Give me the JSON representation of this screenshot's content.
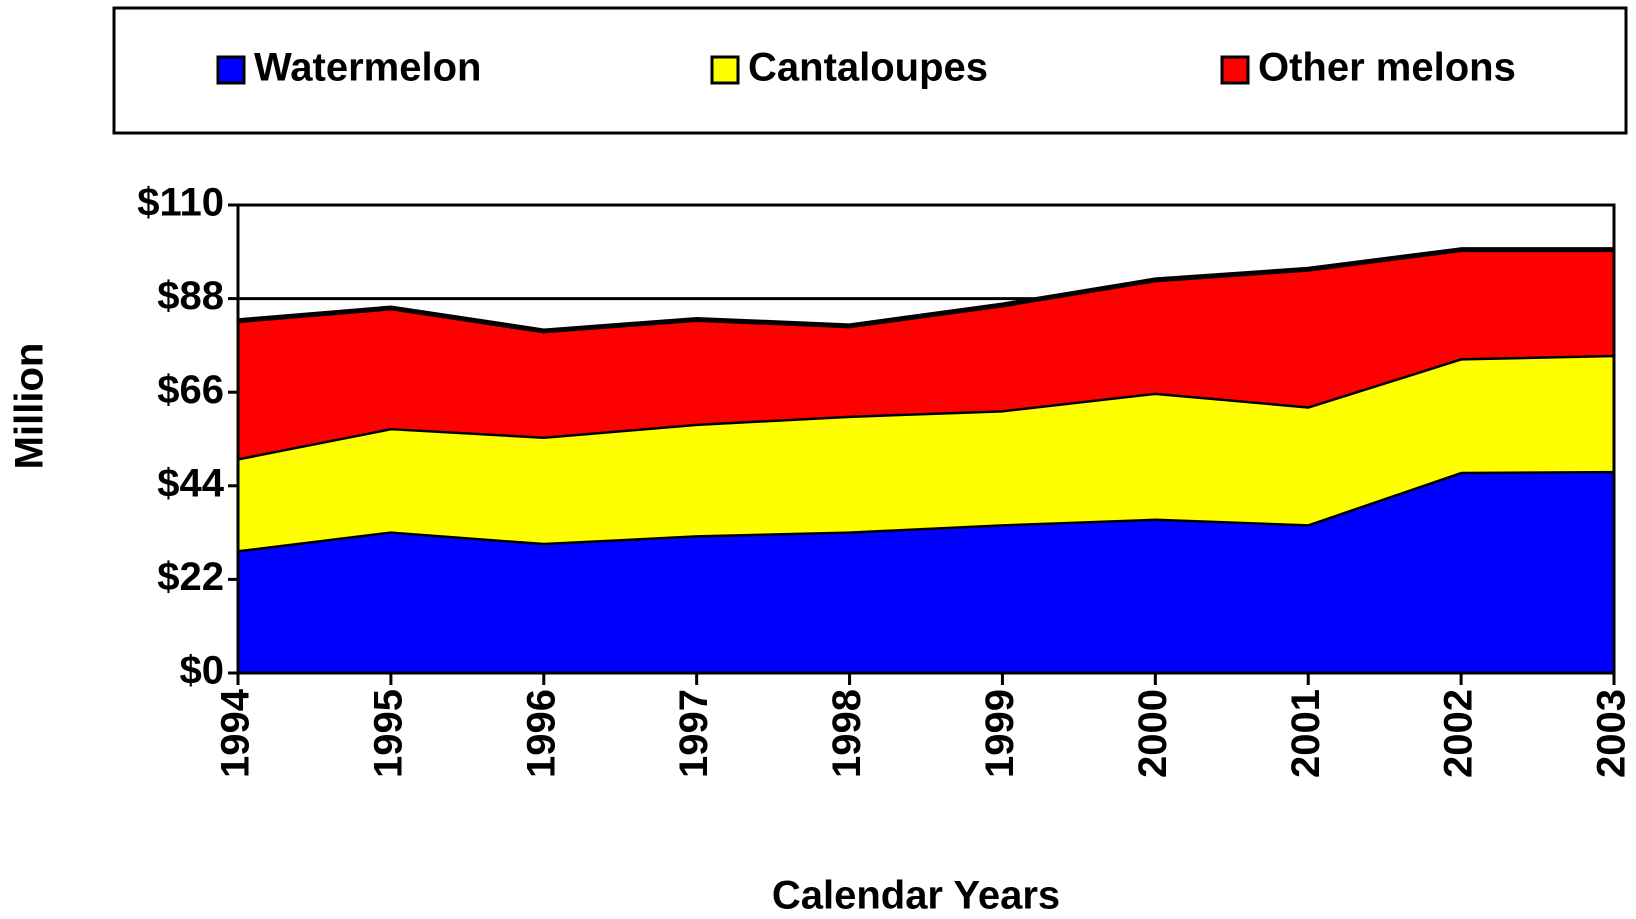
{
  "chart_data": {
    "type": "area",
    "stacked": true,
    "x_label": "Calendar Years",
    "y_label": "Million",
    "categories": [
      "1994",
      "1995",
      "1996",
      "1997",
      "1998",
      "1999",
      "2000",
      "2001",
      "2002",
      "2003"
    ],
    "series": [
      {
        "name": "Watermelon",
        "color": "#0000ff",
        "values": [
          28.9,
          33.3,
          30.6,
          32.4,
          33.3,
          35.0,
          36.3,
          35.0,
          47.3,
          47.5
        ]
      },
      {
        "name": "Cantaloupes",
        "color": "#ffff00",
        "values": [
          21.6,
          24.3,
          25.0,
          26.2,
          27.2,
          26.8,
          29.6,
          27.7,
          26.7,
          27.3
        ]
      },
      {
        "name": "Other melons",
        "color": "#ff0000",
        "values": [
          32.3,
          28.2,
          24.8,
          24.5,
          21.1,
          24.7,
          26.5,
          32.2,
          25.5,
          24.7
        ]
      }
    ],
    "ylim": [
      0,
      110
    ],
    "yticks": [
      {
        "value": 0,
        "label": "$0"
      },
      {
        "value": 22,
        "label": "$22"
      },
      {
        "value": 44,
        "label": "$44"
      },
      {
        "value": 66,
        "label": "$66"
      },
      {
        "value": 88,
        "label": "$88"
      },
      {
        "value": 110,
        "label": "$110"
      }
    ],
    "grid": true,
    "legend": "top"
  }
}
